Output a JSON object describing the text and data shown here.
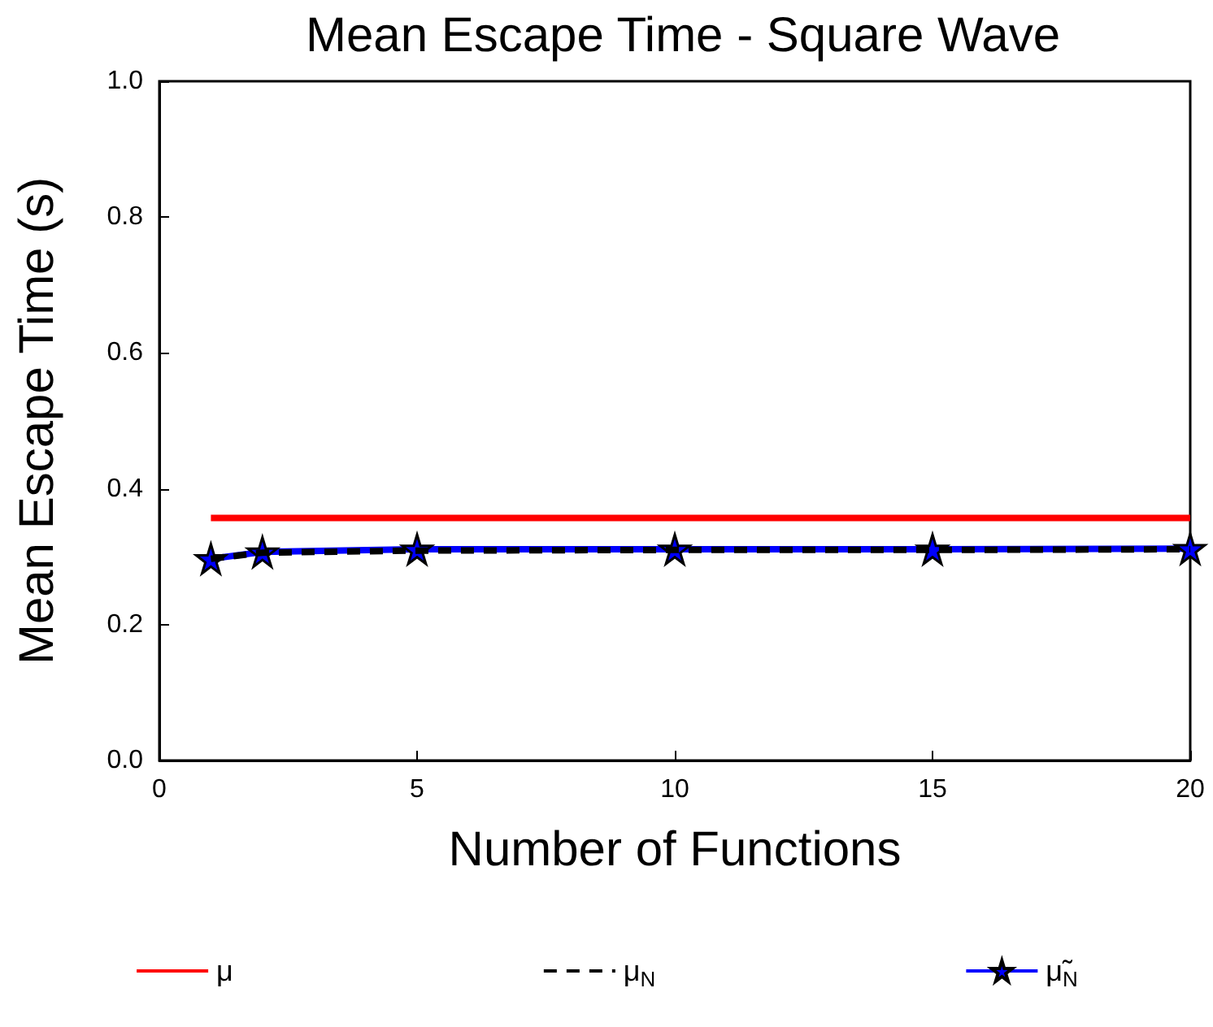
{
  "chart_data": {
    "type": "line",
    "title": "Mean Escape Time - Square Wave",
    "xlabel": "Number of Functions",
    "ylabel": "Mean Escape Time (s)",
    "xlim": [
      0,
      20
    ],
    "xticks": [
      0,
      5,
      10,
      15,
      20
    ],
    "ylim": [
      0,
      1.0
    ],
    "yticks": [
      {
        "value": 0,
        "label": "0.0"
      },
      {
        "value": 0.2,
        "label": "0.2"
      },
      {
        "value": 0.4,
        "label": "0.4"
      },
      {
        "value": 0.6,
        "label": "0.6"
      },
      {
        "value": 0.8,
        "label": "0.8"
      },
      {
        "value": 1.0,
        "label": "1.0"
      }
    ],
    "grid": false,
    "legend": "bottom",
    "series": [
      {
        "name": "μ",
        "color": "#ff0000",
        "x": [
          1,
          20
        ],
        "values": [
          0.357,
          0.357
        ],
        "line_style": "solid",
        "marker": "none"
      },
      {
        "name": "μ$_{N}$",
        "color": "#000000",
        "x": [
          1,
          2,
          5,
          10,
          15,
          20
        ],
        "values": [
          0.297,
          0.306,
          0.309,
          0.31,
          0.31,
          0.311
        ],
        "line_style": "dashed",
        "marker": "none"
      },
      {
        "name": "μ̃$_{N}$",
        "color": "#0000ff",
        "x": [
          1,
          2,
          5,
          10,
          15,
          20
        ],
        "values": [
          0.297,
          0.307,
          0.311,
          0.311,
          0.311,
          0.312
        ],
        "line_style": "solid",
        "marker": "star"
      }
    ]
  }
}
